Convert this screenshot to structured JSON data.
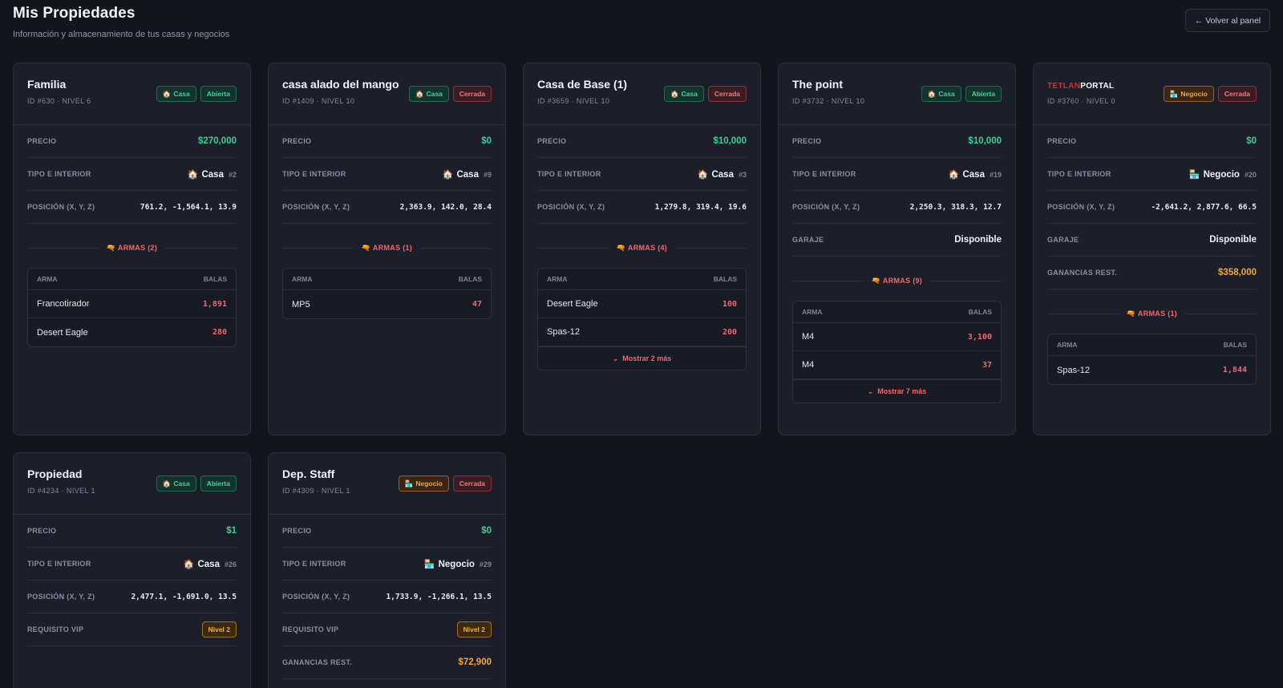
{
  "header": {
    "title": "Mis Propiedades",
    "subtitle": "Información y almacenamiento de tus casas y negocios",
    "back_label": "← Volver al panel"
  },
  "labels": {
    "price": "PRECIO",
    "type_interior": "TIPO E INTERIOR",
    "position": "POSICIÓN (X, Y, Z)",
    "garage": "GARAJE",
    "vip": "REQUISITO VIP",
    "earnings": "GANANCIAS REST.",
    "weapon_col": "ARMA",
    "ammo_col": "BALAS"
  },
  "colors": {
    "accent_green": "#35d28f",
    "accent_red": "#ef6a6f",
    "accent_orange": "#f5a830"
  },
  "properties": [
    {
      "name": "Familia",
      "id_line": "ID #630 · NIVEL 6",
      "type_badge": "Casa",
      "status_badge": "Abierta",
      "price": "$270,000",
      "type": "Casa",
      "interior": "#2",
      "position": "761.2, -1,564.1, 13.9",
      "weapons_title": "ARMAS (2)",
      "weapons": [
        {
          "name": "Francotirador",
          "ammo": "1,891"
        },
        {
          "name": "Desert Eagle",
          "ammo": "280"
        }
      ]
    },
    {
      "name": "casa alado del mango",
      "id_line": "ID #1409 · NIVEL 10",
      "type_badge": "Casa",
      "status_badge": "Cerrada",
      "price": "$0",
      "type": "Casa",
      "interior": "#9",
      "position": "2,363.9, 142.0, 28.4",
      "weapons_title": "ARMAS (1)",
      "weapons": [
        {
          "name": "MP5",
          "ammo": "47"
        }
      ]
    },
    {
      "name": "Casa de Base (1)",
      "id_line": "ID #3659 · NIVEL 10",
      "type_badge": "Casa",
      "status_badge": "Cerrada",
      "price": "$10,000",
      "type": "Casa",
      "interior": "#3",
      "position": "1,279.8, 319.4, 19.6",
      "weapons_title": "ARMAS (4)",
      "weapons": [
        {
          "name": "Desert Eagle",
          "ammo": "100"
        },
        {
          "name": "Spas-12",
          "ammo": "200"
        }
      ],
      "show_more": "Mostrar 2 más"
    },
    {
      "name": "The point",
      "id_line": "ID #3732 · NIVEL 10",
      "type_badge": "Casa",
      "status_badge": "Abierta",
      "price": "$10,000",
      "type": "Casa",
      "interior": "#19",
      "position": "2,250.3, 318.3, 12.7",
      "garage": "Disponible",
      "weapons_title": "ARMAS (9)",
      "weapons": [
        {
          "name": "M4",
          "ammo": "3,100"
        },
        {
          "name": "M4",
          "ammo": "37"
        }
      ],
      "show_more": "Mostrar 7 más"
    },
    {
      "name_red": "TETLAN",
      "name_white": "PORTAL",
      "id_line": "ID #3760 · NIVEL 0",
      "type_badge": "Negocio",
      "status_badge": "Cerrada",
      "price": "$0",
      "type": "Negocio",
      "interior": "#20",
      "position": "-2,641.2, 2,877.6, 66.5",
      "garage": "Disponible",
      "earnings": "$358,000",
      "weapons_title": "ARMAS (1)",
      "weapons": [
        {
          "name": "Spas-12",
          "ammo": "1,844"
        }
      ]
    },
    {
      "name": "Propiedad",
      "id_line": "ID #4234 · NIVEL 1",
      "type_badge": "Casa",
      "status_badge": "Abierta",
      "price": "$1",
      "type": "Casa",
      "interior": "#26",
      "position": "2,477.1, -1,691.0, 13.5",
      "vip": "Nivel 2"
    },
    {
      "name": "Dep. Staff",
      "id_line": "ID #4309 · NIVEL 1",
      "type_badge": "Negocio",
      "status_badge": "Cerrada",
      "price": "$0",
      "type": "Negocio",
      "interior": "#29",
      "position": "1,733.9, -1,266.1, 13.5",
      "vip": "Nivel 2",
      "earnings": "$72,900"
    }
  ]
}
